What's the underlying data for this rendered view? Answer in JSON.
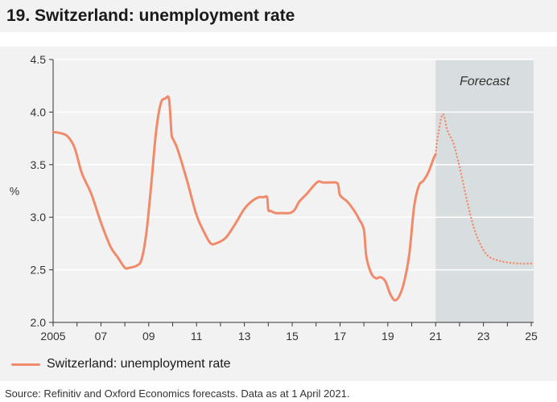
{
  "title": "19. Switzerland: unemployment rate",
  "source": "Source: Refinitiv and Oxford Economics forecasts. Data as at 1 April 2021.",
  "colors": {
    "series": "#f08a6a",
    "forecast_band": "#d8dde0",
    "panel_bg": "#f2f2f2",
    "grid": "#ffffff"
  },
  "chart_data": {
    "type": "line",
    "title": "19. Switzerland: unemployment rate",
    "ylabel": "%",
    "xlabel": "",
    "xlim": [
      2005,
      2025.1
    ],
    "ylim": [
      2.0,
      4.5
    ],
    "yticks": [
      2.0,
      2.5,
      3.0,
      3.5,
      4.0,
      4.5
    ],
    "ytick_labels": [
      "2.0",
      "2.5",
      "3.0",
      "3.5",
      "4.0",
      "4.5"
    ],
    "xticks": [
      2005,
      2007,
      2009,
      2011,
      2013,
      2015,
      2017,
      2019,
      2021,
      2023,
      2025
    ],
    "xtick_labels": [
      "2005",
      "07",
      "09",
      "11",
      "13",
      "15",
      "17",
      "19",
      "21",
      "23",
      "25"
    ],
    "grid": true,
    "forecast_region": {
      "start": 2021.0,
      "end": 2025.1,
      "label": "Forecast"
    },
    "series": [
      {
        "name": "Switzerland: unemployment rate",
        "style": "solid",
        "x": [
          2005.0,
          2005.3,
          2005.6,
          2005.9,
          2006.2,
          2006.6,
          2007.0,
          2007.4,
          2007.7,
          2008.0,
          2008.2,
          2008.5,
          2008.7,
          2008.9,
          2009.1,
          2009.3,
          2009.5,
          2009.7,
          2009.85,
          2009.95,
          2010.0,
          2010.2,
          2010.6,
          2011.0,
          2011.4,
          2011.6,
          2011.8,
          2012.2,
          2012.6,
          2013.0,
          2013.3,
          2013.6,
          2013.8,
          2013.95,
          2014.0,
          2014.1,
          2014.3,
          2014.6,
          2014.9,
          2015.1,
          2015.3,
          2015.6,
          2015.9,
          2016.1,
          2016.3,
          2016.6,
          2016.9,
          2017.0,
          2017.3,
          2017.6,
          2017.8,
          2018.0,
          2018.1,
          2018.3,
          2018.5,
          2018.7,
          2018.9,
          2019.1,
          2019.3,
          2019.5,
          2019.7,
          2019.9,
          2020.1,
          2020.3,
          2020.5,
          2020.7,
          2020.9,
          2021.0
        ],
        "values": [
          3.81,
          3.8,
          3.77,
          3.66,
          3.42,
          3.22,
          2.95,
          2.72,
          2.62,
          2.52,
          2.52,
          2.54,
          2.6,
          2.85,
          3.3,
          3.8,
          4.08,
          4.13,
          4.12,
          3.8,
          3.75,
          3.65,
          3.35,
          3.02,
          2.82,
          2.75,
          2.75,
          2.8,
          2.93,
          3.08,
          3.15,
          3.19,
          3.19,
          3.19,
          3.07,
          3.06,
          3.04,
          3.04,
          3.04,
          3.07,
          3.15,
          3.22,
          3.3,
          3.34,
          3.33,
          3.33,
          3.32,
          3.21,
          3.15,
          3.06,
          2.98,
          2.88,
          2.63,
          2.47,
          2.42,
          2.43,
          2.39,
          2.27,
          2.21,
          2.26,
          2.4,
          2.65,
          3.1,
          3.3,
          3.35,
          3.43,
          3.55,
          3.6
        ]
      },
      {
        "name": "Forecast",
        "style": "dotted",
        "x": [
          2021.0,
          2021.1,
          2021.3,
          2021.5,
          2021.75,
          2022.0,
          2022.3,
          2022.6,
          2022.9,
          2023.2,
          2023.6,
          2024.0,
          2024.5,
          2025.0
        ],
        "values": [
          3.6,
          3.78,
          3.98,
          3.82,
          3.7,
          3.48,
          3.17,
          2.9,
          2.73,
          2.63,
          2.59,
          2.57,
          2.56,
          2.56
        ]
      }
    ]
  },
  "legend": {
    "label": "Switzerland: unemployment rate"
  }
}
